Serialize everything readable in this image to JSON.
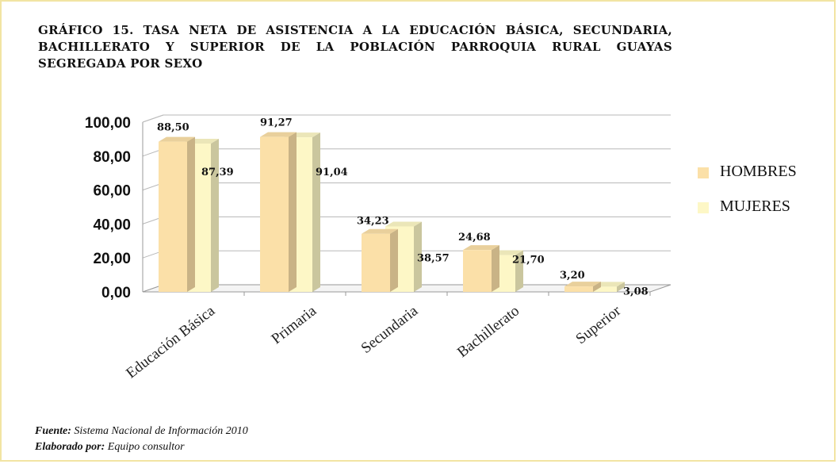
{
  "chart_data": {
    "type": "bar",
    "title": "GRÁFICO 15. TASA NETA DE ASISTENCIA A LA EDUCACIÓN BÁSICA, SECUNDARIA, BACHILLERATO Y SUPERIOR DE LA POBLACIÓN PARROQUIA RURAL GUAYAS SEGREGADA POR SEXO",
    "categories": [
      "Educación Básica",
      "Primaria",
      "Secundaria",
      "Bachillerato",
      "Superior"
    ],
    "series": [
      {
        "name": "HOMBRES",
        "values": [
          88.5,
          91.27,
          34.23,
          24.68,
          3.2
        ],
        "labels": [
          "88,50",
          "91,27",
          "34,23",
          "24,68",
          "3,20"
        ],
        "color": "#fbe0a8"
      },
      {
        "name": "MUJERES",
        "values": [
          87.39,
          91.04,
          38.57,
          21.7,
          3.08
        ],
        "labels": [
          "87,39",
          "91,04",
          "38,57",
          "21,70",
          "3,08"
        ],
        "color": "#fdf7c6"
      }
    ],
    "yticks": [
      "0,00",
      "20,00",
      "40,00",
      "60,00",
      "80,00",
      "100,00"
    ],
    "ylim": [
      0,
      100
    ],
    "grid": true,
    "legend": "right",
    "xlabel": "",
    "ylabel": ""
  },
  "footer": {
    "source_label": "Fuente:",
    "source_text": " Sistema Nacional de Información 2010",
    "author_label": "Elaborado por:",
    "author_text": " Equipo consultor"
  }
}
